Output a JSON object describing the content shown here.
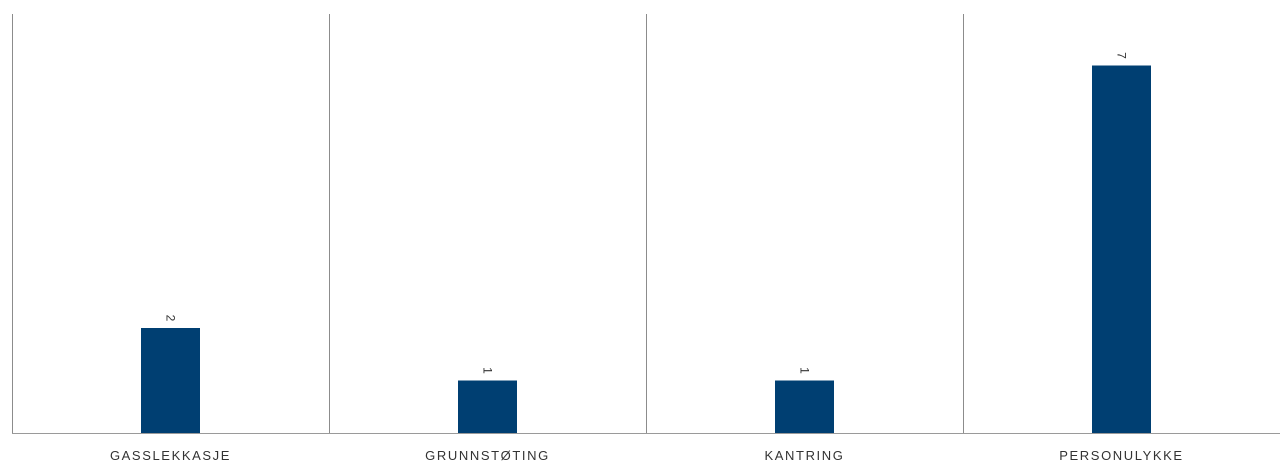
{
  "chart_data": {
    "type": "bar",
    "categories": [
      "GASSLEKKASJE",
      "GRUNNSTØTING",
      "KANTRING",
      "PERSONULYKKE"
    ],
    "values": [
      2,
      1,
      1,
      7
    ],
    "value_labels": [
      "2",
      "1",
      "1",
      "7"
    ],
    "ylim": [
      0,
      8
    ],
    "title": "",
    "xlabel": "",
    "ylabel": "",
    "grid": false,
    "legend": "none",
    "colors": {
      "bar": "#003f72",
      "separator": "#8c8c8c",
      "baseline": "#9a9a9a",
      "text": "#333333"
    }
  }
}
